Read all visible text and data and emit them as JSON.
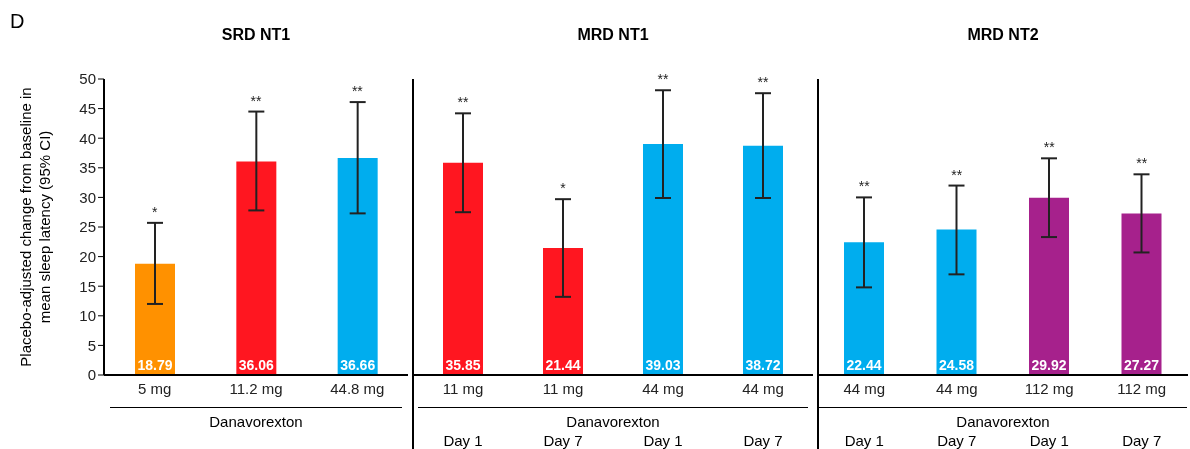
{
  "chart_data": [
    {
      "type": "bar",
      "title": "SRD NT1",
      "ylabel": "Placebo-adjusted change from baseline in mean sleep latency (95% CI)",
      "xlabel": "Danavorexton",
      "categories": [
        "5 mg",
        "11.2 mg",
        "44.8 mg"
      ],
      "values": [
        18.79,
        36.06,
        36.66
      ],
      "colors": [
        "#ff9100",
        "#ff1620",
        "#00adee"
      ],
      "errors": [
        [
          12.0,
          25.7
        ],
        [
          27.8,
          44.5
        ],
        [
          27.3,
          46.1
        ]
      ],
      "data_labels": true,
      "ylim": [
        0,
        50
      ],
      "yticks": [
        0,
        5,
        10,
        15,
        20,
        25,
        30,
        35,
        40,
        45,
        50
      ],
      "annotations": [
        "D",
        "*",
        "**",
        "**"
      ]
    },
    {
      "type": "bar",
      "title": "MRD NT1",
      "xlabel": "Danavorexton",
      "categories": [
        "11 mg",
        "11 mg",
        "44 mg",
        "44 mg"
      ],
      "values": [
        35.85,
        21.44,
        39.03,
        38.72
      ],
      "colors": [
        "#ff1620",
        "#ff1620",
        "#00adee",
        "#00adee"
      ],
      "errors": [
        [
          27.5,
          44.2
        ],
        [
          13.2,
          29.7
        ],
        [
          29.9,
          48.1
        ],
        [
          29.9,
          47.6
        ]
      ],
      "data_labels": true,
      "ylim": [
        0,
        50
      ],
      "yticks": [
        0,
        5,
        10,
        15,
        20,
        25,
        30,
        35,
        40,
        45,
        50
      ],
      "tick_labels": "x",
      "annotations": [
        "**",
        "*",
        "**",
        "**",
        "Day 1",
        "Day 7",
        "Day 1",
        "Day 7"
      ]
    },
    {
      "type": "bar",
      "title": "MRD NT2",
      "xlabel": "Danavorexton",
      "categories": [
        "44 mg",
        "44 mg",
        "112 mg",
        "112 mg"
      ],
      "values": [
        22.44,
        24.58,
        29.92,
        27.27
      ],
      "colors": [
        "#00adee",
        "#00adee",
        "#a6218c",
        "#a6218c"
      ],
      "errors": [
        [
          14.8,
          30.0
        ],
        [
          17.0,
          32.0
        ],
        [
          23.3,
          36.6
        ],
        [
          20.7,
          33.9
        ]
      ],
      "data_labels": true,
      "ylim": [
        0,
        50
      ],
      "yticks": [
        0,
        5,
        10,
        15,
        20,
        25,
        30,
        35,
        40,
        45,
        50
      ],
      "tick_labels": "x",
      "annotations": [
        "**",
        "**",
        "**",
        "**",
        "Day 1",
        "Day 7",
        "Day 1",
        "Day 7"
      ]
    }
  ]
}
